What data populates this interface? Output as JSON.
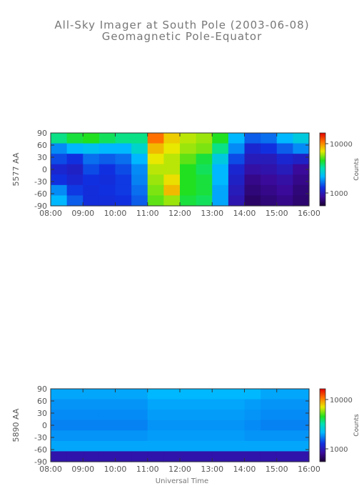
{
  "title": "All-Sky Imager at South Pole (2003-06-08)",
  "subtitle": "Geomagnetic Pole-Equator",
  "xlabel": "Universal Time",
  "chart_data": [
    {
      "type": "heatmap",
      "ylabel": "5577 AA",
      "x_ticks": [
        "08:00",
        "09:00",
        "10:00",
        "11:00",
        "12:00",
        "13:00",
        "14:00",
        "15:00",
        "16:00"
      ],
      "y_ticks": [
        "90",
        "60",
        "30",
        "0",
        "-30",
        "-60",
        "-90"
      ],
      "ylim": [
        -90,
        90
      ],
      "xlim": [
        "08:00",
        "16:00"
      ],
      "colorbar": {
        "label": "Counts",
        "ticks": [
          "10000",
          "1000"
        ],
        "scale": "log"
      },
      "time_bins": [
        "08:00",
        "08:30",
        "09:00",
        "09:30",
        "10:00",
        "10:30",
        "11:00",
        "11:30",
        "12:00",
        "12:30",
        "13:00",
        "13:30",
        "14:00",
        "14:30",
        "15:00",
        "15:30"
      ],
      "latitude_bins": [
        90,
        60,
        30,
        0,
        -30,
        -60,
        -90
      ],
      "values": [
        [
          0.55,
          0.6,
          0.62,
          0.58,
          0.55,
          0.55,
          0.88,
          0.78,
          0.72,
          0.7,
          0.62,
          0.4,
          0.3,
          0.32,
          0.4,
          0.45
        ],
        [
          0.35,
          0.4,
          0.42,
          0.4,
          0.4,
          0.48,
          0.8,
          0.75,
          0.7,
          0.68,
          0.55,
          0.35,
          0.22,
          0.25,
          0.3,
          0.35
        ],
        [
          0.28,
          0.25,
          0.32,
          0.3,
          0.32,
          0.4,
          0.75,
          0.72,
          0.66,
          0.6,
          0.45,
          0.28,
          0.18,
          0.18,
          0.22,
          0.2
        ],
        [
          0.22,
          0.2,
          0.28,
          0.25,
          0.28,
          0.35,
          0.72,
          0.72,
          0.62,
          0.58,
          0.4,
          0.22,
          0.14,
          0.15,
          0.18,
          0.12
        ],
        [
          0.25,
          0.22,
          0.25,
          0.24,
          0.26,
          0.34,
          0.7,
          0.76,
          0.62,
          0.6,
          0.4,
          0.2,
          0.1,
          0.12,
          0.14,
          0.1
        ],
        [
          0.35,
          0.26,
          0.24,
          0.25,
          0.26,
          0.32,
          0.68,
          0.8,
          0.62,
          0.6,
          0.38,
          0.18,
          0.08,
          0.1,
          0.12,
          0.08
        ],
        [
          0.4,
          0.3,
          0.24,
          0.24,
          0.25,
          0.3,
          0.66,
          0.7,
          0.6,
          0.58,
          0.38,
          0.16,
          0.06,
          0.08,
          0.1,
          0.07
        ]
      ]
    },
    {
      "type": "heatmap",
      "ylabel": "5890 AA",
      "x_ticks": [
        "08:00",
        "09:00",
        "10:00",
        "11:00",
        "12:00",
        "13:00",
        "14:00",
        "15:00",
        "16:00"
      ],
      "y_ticks": [
        "90",
        "60",
        "30",
        "0",
        "-30",
        "-60",
        "-90"
      ],
      "ylim": [
        -90,
        90
      ],
      "xlim": [
        "08:00",
        "16:00"
      ],
      "colorbar": {
        "label": "Counts",
        "ticks": [
          "10000",
          "1000"
        ],
        "scale": "log"
      },
      "time_bins": [
        "08:00",
        "08:30",
        "09:00",
        "09:30",
        "10:00",
        "10:30",
        "11:00",
        "11:30",
        "12:00",
        "12:30",
        "13:00",
        "13:30",
        "14:00",
        "14:30",
        "15:00",
        "15:30"
      ],
      "latitude_bins": [
        90,
        60,
        30,
        0,
        -30,
        -60,
        -90
      ],
      "values": [
        [
          0.38,
          0.38,
          0.38,
          0.38,
          0.38,
          0.38,
          0.4,
          0.4,
          0.4,
          0.4,
          0.4,
          0.4,
          0.4,
          0.38,
          0.38,
          0.38
        ],
        [
          0.36,
          0.36,
          0.36,
          0.36,
          0.36,
          0.36,
          0.38,
          0.38,
          0.38,
          0.38,
          0.38,
          0.38,
          0.37,
          0.36,
          0.36,
          0.36
        ],
        [
          0.35,
          0.35,
          0.35,
          0.35,
          0.35,
          0.35,
          0.37,
          0.37,
          0.37,
          0.37,
          0.37,
          0.37,
          0.36,
          0.35,
          0.35,
          0.35
        ],
        [
          0.34,
          0.34,
          0.34,
          0.34,
          0.34,
          0.34,
          0.36,
          0.36,
          0.36,
          0.36,
          0.36,
          0.36,
          0.35,
          0.34,
          0.34,
          0.34
        ],
        [
          0.36,
          0.36,
          0.36,
          0.36,
          0.36,
          0.36,
          0.37,
          0.37,
          0.37,
          0.37,
          0.37,
          0.37,
          0.36,
          0.36,
          0.36,
          0.36
        ],
        [
          0.38,
          0.38,
          0.38,
          0.38,
          0.38,
          0.38,
          0.38,
          0.38,
          0.38,
          0.38,
          0.38,
          0.38,
          0.38,
          0.38,
          0.38,
          0.38
        ],
        [
          0.15,
          0.15,
          0.15,
          0.15,
          0.15,
          0.15,
          0.15,
          0.15,
          0.15,
          0.15,
          0.15,
          0.15,
          0.15,
          0.15,
          0.15,
          0.15
        ]
      ]
    }
  ]
}
